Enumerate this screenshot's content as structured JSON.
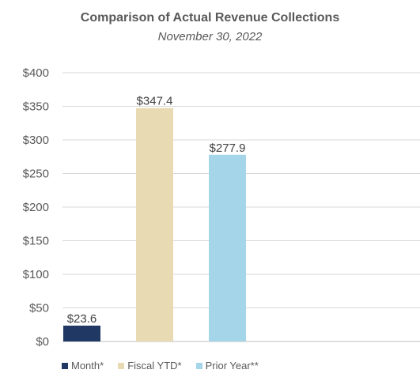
{
  "chart_data": {
    "type": "bar",
    "title": "Comparison of Actual Revenue Collections",
    "subtitle": "November 30, 2022",
    "categories": [
      "Month*",
      "Fiscal YTD*",
      "Prior Year**"
    ],
    "values": [
      23.6,
      347.4,
      277.9
    ],
    "data_labels": [
      "$23.6",
      "$347.4",
      "$277.9"
    ],
    "colors": [
      "#1f3864",
      "#e8dab2",
      "#a5d5e8"
    ],
    "ylim": [
      0,
      400
    ],
    "yticks": [
      0,
      50,
      100,
      150,
      200,
      250,
      300,
      350,
      400
    ],
    "ytick_labels": [
      "$0",
      "$50",
      "$100",
      "$150",
      "$200",
      "$250",
      "$300",
      "$350",
      "$400"
    ],
    "grid": true,
    "legend_position": "bottom-left",
    "xlabel": "",
    "ylabel": ""
  }
}
